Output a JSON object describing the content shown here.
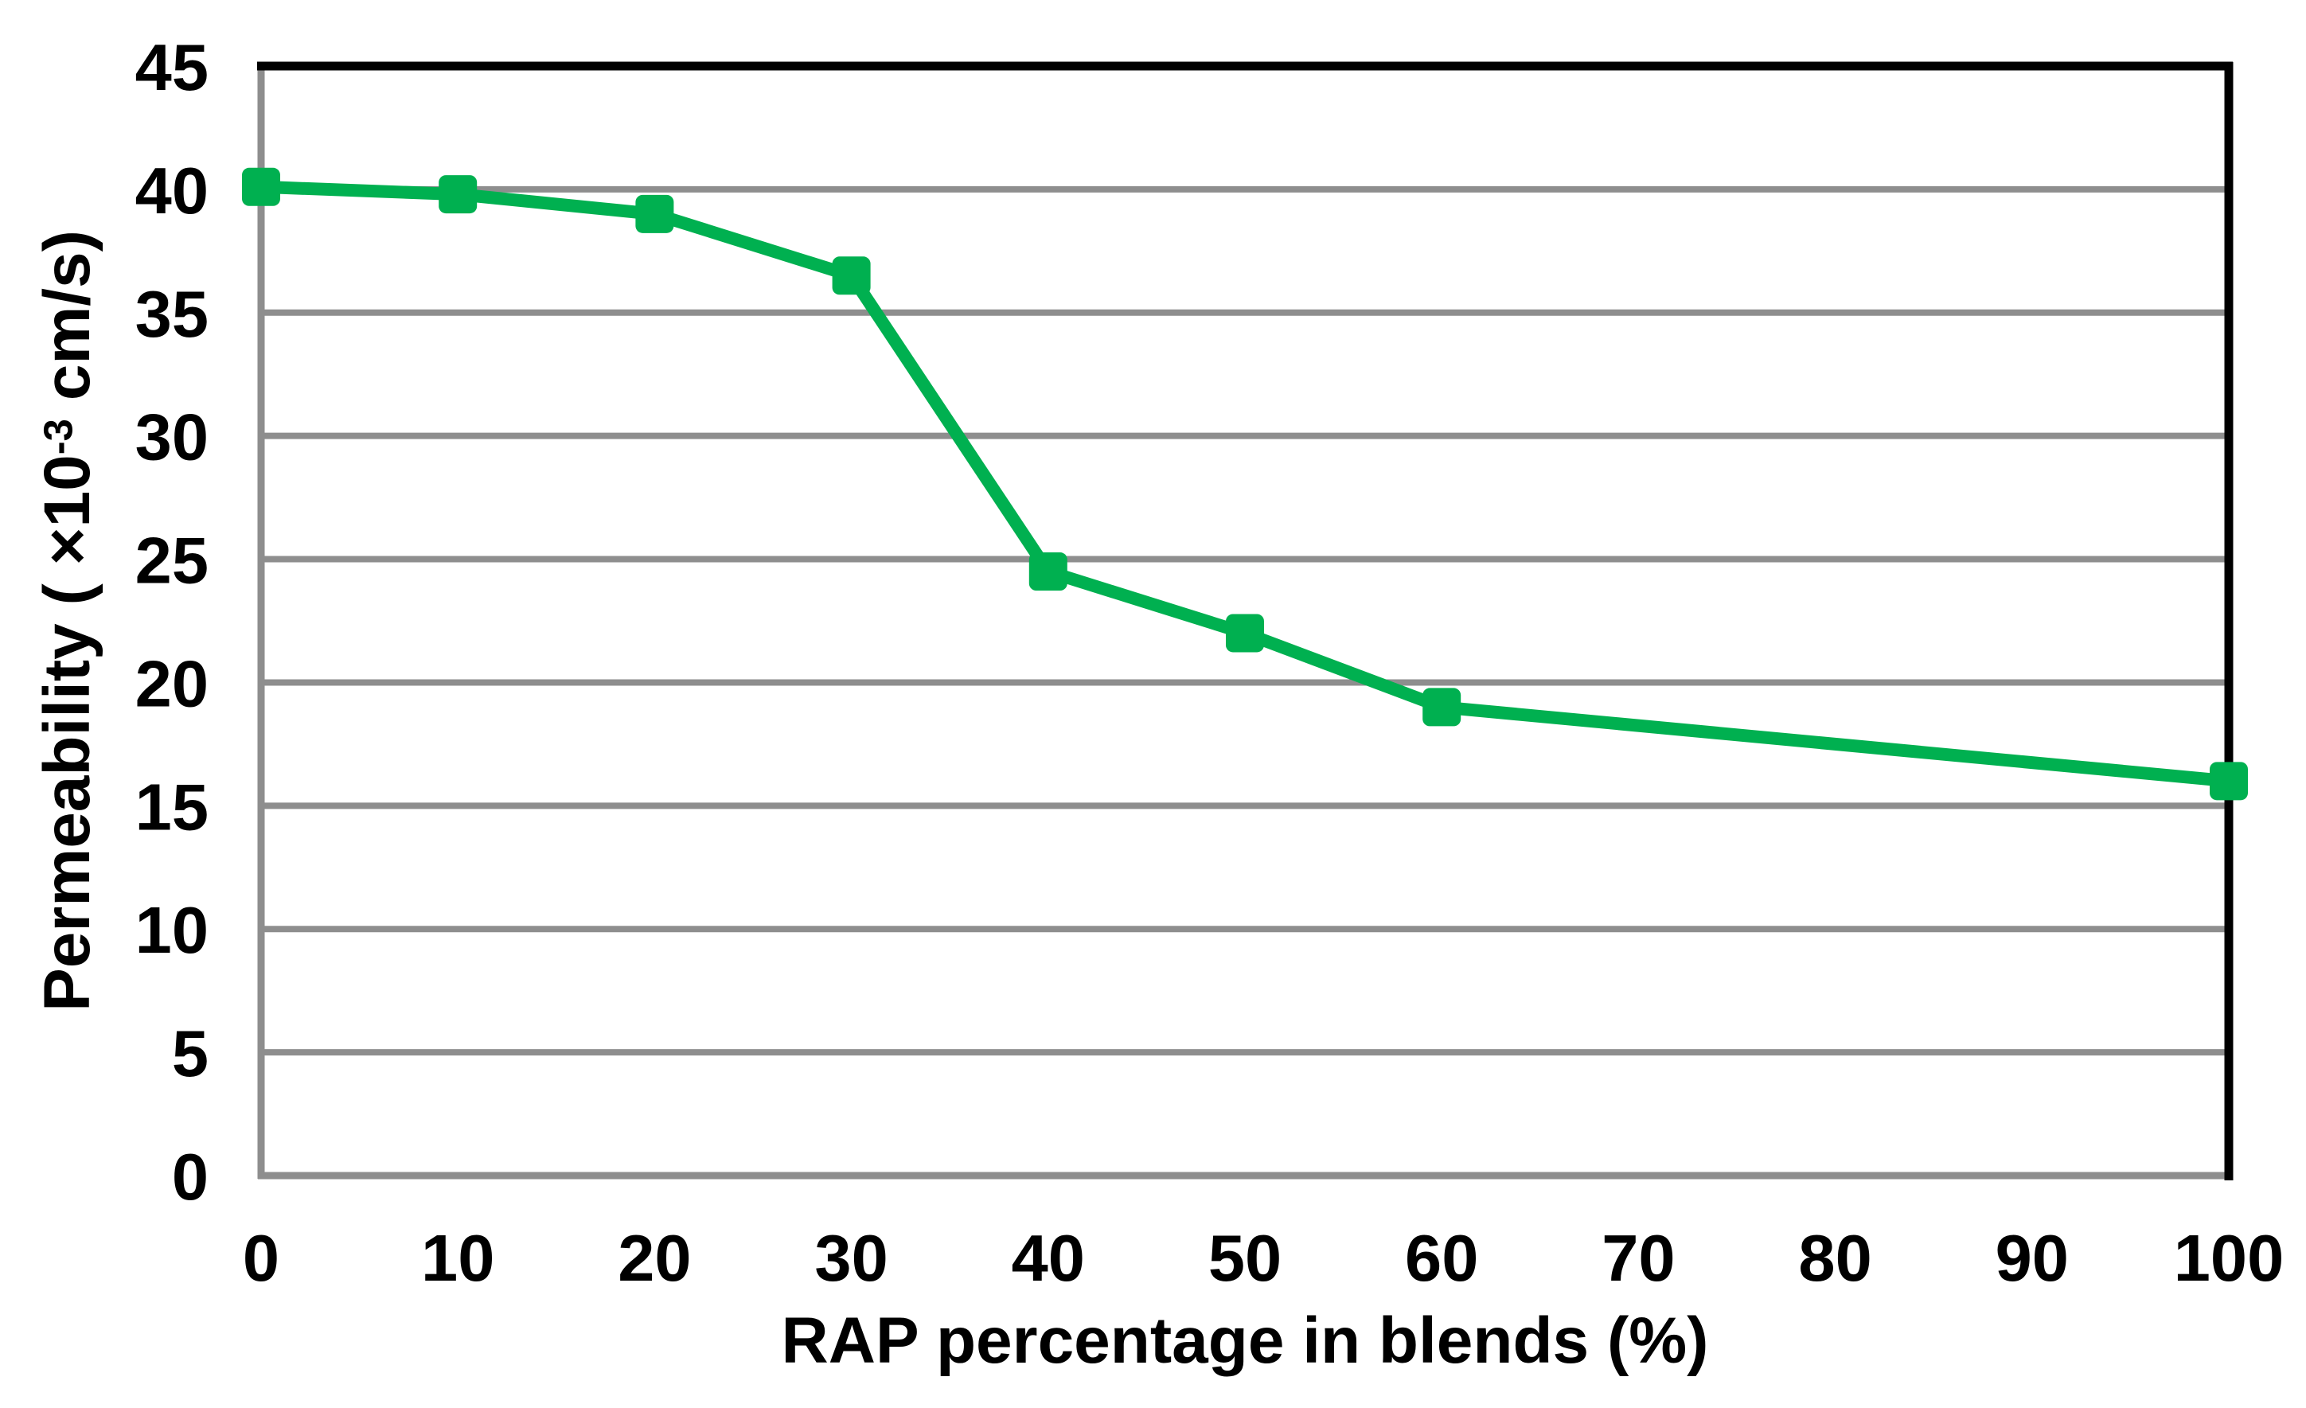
{
  "chart_data": {
    "type": "line",
    "title": "",
    "series": [
      {
        "name": "Permeability",
        "x": [
          0,
          10,
          20,
          30,
          40,
          50,
          60,
          100
        ],
        "values": [
          40.1,
          39.8,
          39,
          36.5,
          24.5,
          22,
          19,
          16
        ]
      }
    ],
    "xlabel": "RAP percentage in blends (%)",
    "ylabel": "Permeability ( ×10⁻³ cm/s)",
    "ylabel_parts": {
      "prefix": "Permeability ( ×10",
      "sup": "-3",
      "suffix": " cm/s)"
    },
    "xlim": [
      0,
      100
    ],
    "ylim": [
      0,
      45
    ],
    "xticks": [
      0,
      10,
      20,
      30,
      40,
      50,
      60,
      70,
      80,
      90,
      100
    ],
    "yticks": [
      0,
      5,
      10,
      15,
      20,
      25,
      30,
      35,
      40,
      45
    ],
    "grid": "horizontal-only",
    "legend_position": "none",
    "marker": "square",
    "colors": {
      "series": "#00B050",
      "gridline": "#8E8E8E",
      "axis_line": "#8E8E8E",
      "plot_border": "#000000",
      "text": "#000000",
      "background": "#FFFFFF"
    }
  }
}
